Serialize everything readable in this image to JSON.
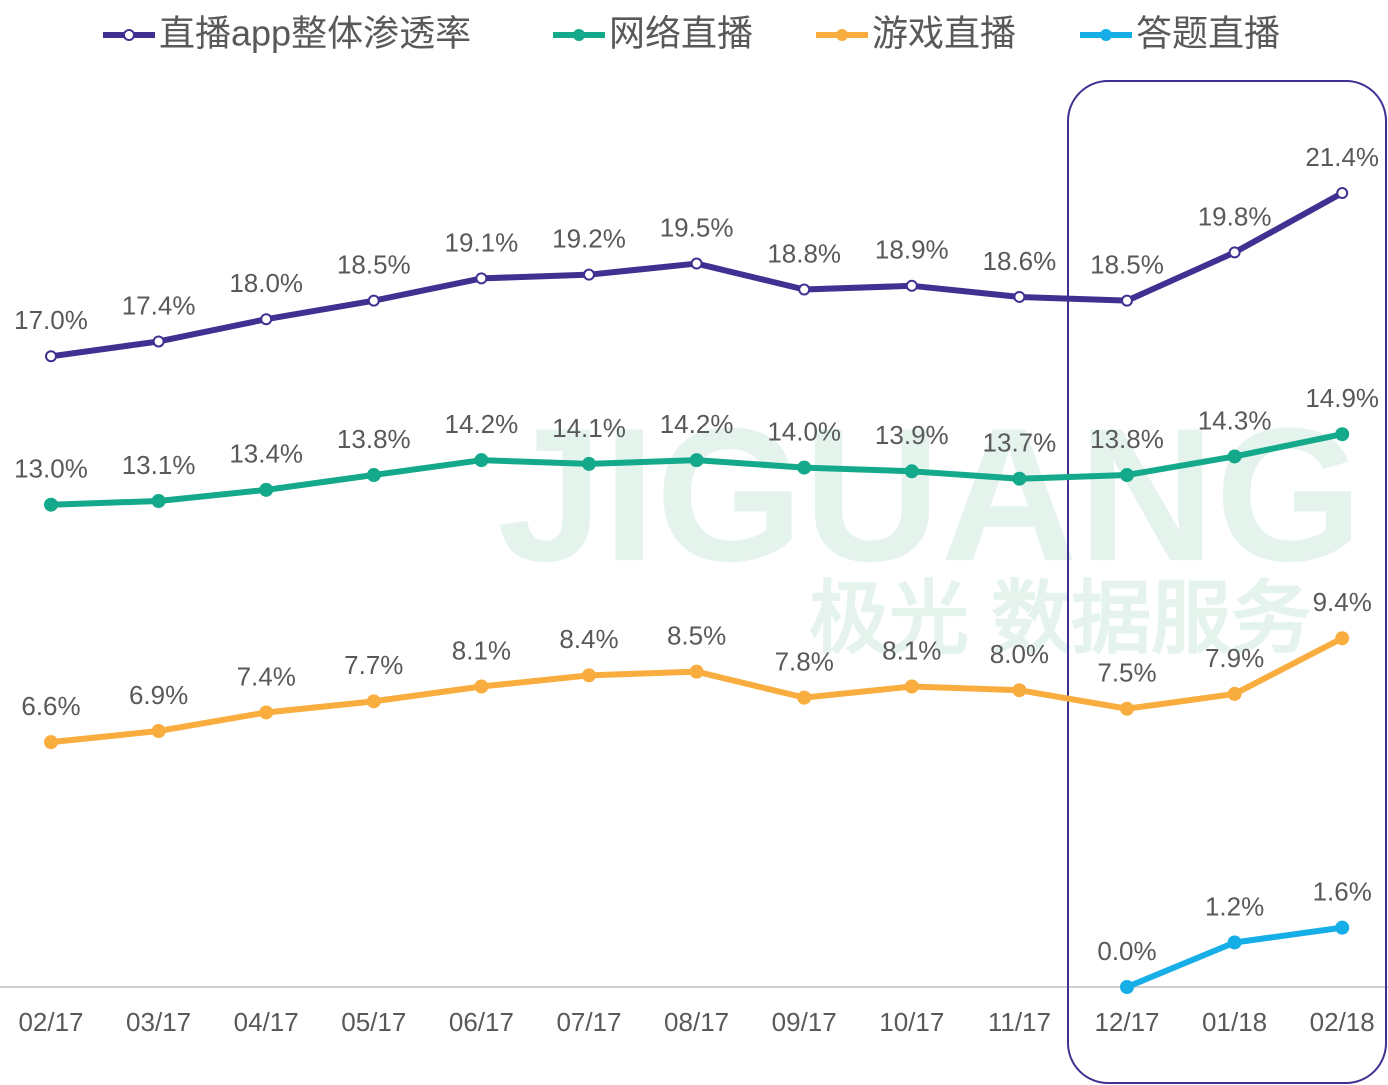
{
  "chart_data": {
    "type": "line",
    "watermark": "JIGUANG",
    "watermark_sub": "极光 数据服务",
    "categories": [
      "02/17",
      "03/17",
      "04/17",
      "05/17",
      "06/17",
      "07/17",
      "08/17",
      "09/17",
      "10/17",
      "11/17",
      "12/17",
      "01/18",
      "02/18"
    ],
    "ylim": [
      0,
      25
    ],
    "series": [
      {
        "name": "直播app整体渗透率",
        "color": "#3f3191",
        "marker": "hollow",
        "values": [
          17.0,
          17.4,
          18.0,
          18.5,
          19.1,
          19.2,
          19.5,
          18.8,
          18.9,
          18.6,
          18.5,
          19.8,
          21.4
        ],
        "value_labels": [
          "17.0%",
          "17.4%",
          "18.0%",
          "18.5%",
          "19.1%",
          "19.2%",
          "19.5%",
          "18.8%",
          "18.9%",
          "18.6%",
          "18.5%",
          "19.8%",
          "21.4%"
        ]
      },
      {
        "name": "网络直播",
        "color": "#13a98a",
        "marker": "filled",
        "values": [
          13.0,
          13.1,
          13.4,
          13.8,
          14.2,
          14.1,
          14.2,
          14.0,
          13.9,
          13.7,
          13.8,
          14.3,
          14.9
        ],
        "value_labels": [
          "13.0%",
          "13.1%",
          "13.4%",
          "13.8%",
          "14.2%",
          "14.1%",
          "14.2%",
          "14.0%",
          "13.9%",
          "13.7%",
          "13.8%",
          "14.3%",
          "14.9%"
        ]
      },
      {
        "name": "游戏直播",
        "color": "#f9ad3f",
        "marker": "filled",
        "values": [
          6.6,
          6.9,
          7.4,
          7.7,
          8.1,
          8.4,
          8.5,
          7.8,
          8.1,
          8.0,
          7.5,
          7.9,
          9.4
        ],
        "value_labels": [
          "6.6%",
          "6.9%",
          "7.4%",
          "7.7%",
          "8.1%",
          "8.4%",
          "8.5%",
          "7.8%",
          "8.1%",
          "8.0%",
          "7.5%",
          "7.9%",
          "9.4%"
        ]
      },
      {
        "name": "答题直播",
        "color": "#16aee6",
        "marker": "filled",
        "values": [
          null,
          null,
          null,
          null,
          null,
          null,
          null,
          null,
          null,
          null,
          0.0,
          1.2,
          1.6
        ],
        "value_labels": [
          null,
          null,
          null,
          null,
          null,
          null,
          null,
          null,
          null,
          null,
          "0.0%",
          "1.2%",
          "1.6%"
        ]
      }
    ]
  }
}
